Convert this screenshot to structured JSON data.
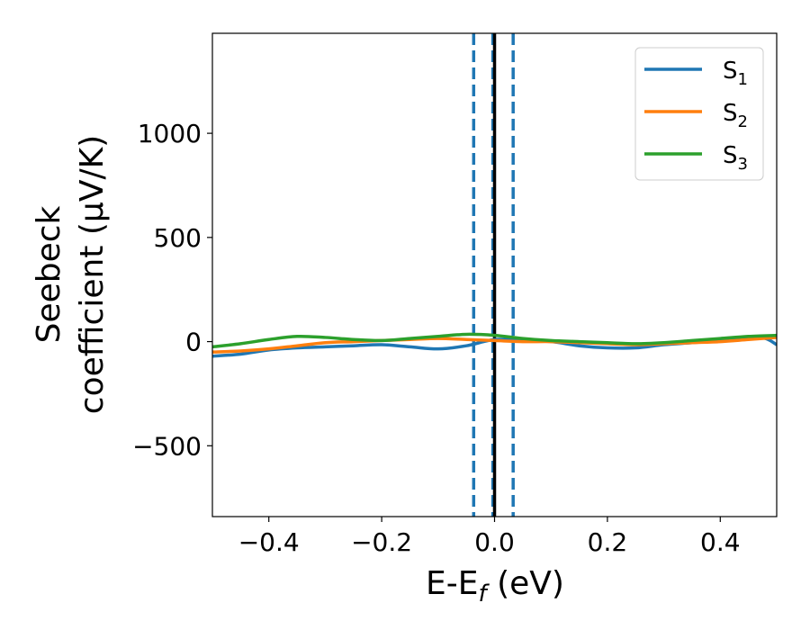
{
  "chart_data": {
    "type": "line",
    "xlabel": "E-E",
    "xlabel_sub": "f",
    "xlabel_unit": " (eV)",
    "ylabel_line1": "Seebeck",
    "ylabel_line2": "coefficient  (μV/K)",
    "xlim": [
      -0.5,
      0.5
    ],
    "ylim": [
      -840,
      1480
    ],
    "xticks": [
      -0.4,
      -0.2,
      0.0,
      0.2,
      0.4
    ],
    "xtick_labels": [
      "−0.4",
      "−0.2",
      "0.0",
      "0.2",
      "0.4"
    ],
    "yticks": [
      -500,
      0,
      500,
      1000
    ],
    "ytick_labels": [
      "−500",
      "0",
      "500",
      "1000"
    ],
    "grid": false,
    "legend_position": "top-right",
    "vlines": [
      {
        "x": -0.037,
        "style": "dashed",
        "color": "#1f77b4"
      },
      {
        "x": -0.003,
        "style": "dashed",
        "color": "#1f77b4"
      },
      {
        "x": 0.033,
        "style": "dashed",
        "color": "#1f77b4"
      },
      {
        "x": 0.0,
        "style": "solid",
        "color": "#000000"
      }
    ],
    "series": [
      {
        "name": "S",
        "sub": "1",
        "color": "#1f77b4",
        "x": [
          -0.5,
          -0.45,
          -0.4,
          -0.35,
          -0.3,
          -0.25,
          -0.2,
          -0.15,
          -0.1,
          -0.05,
          0.0,
          0.05,
          0.1,
          0.15,
          0.2,
          0.25,
          0.3,
          0.35,
          0.4,
          0.45,
          0.48,
          0.5
        ],
        "y": [
          -70,
          -60,
          -40,
          -30,
          -25,
          -20,
          -15,
          -25,
          -35,
          -20,
          10,
          5,
          0,
          -20,
          -30,
          -30,
          -15,
          -5,
          5,
          20,
          15,
          -15
        ]
      },
      {
        "name": "S",
        "sub": "2",
        "color": "#ff7f0e",
        "x": [
          -0.5,
          -0.45,
          -0.4,
          -0.35,
          -0.3,
          -0.25,
          -0.2,
          -0.15,
          -0.1,
          -0.05,
          0.0,
          0.05,
          0.1,
          0.15,
          0.2,
          0.25,
          0.3,
          0.35,
          0.4,
          0.45,
          0.5
        ],
        "y": [
          -50,
          -45,
          -35,
          -20,
          -5,
          0,
          5,
          10,
          15,
          10,
          5,
          0,
          0,
          -5,
          -10,
          -15,
          -10,
          -5,
          0,
          10,
          20
        ]
      },
      {
        "name": "S",
        "sub": "3",
        "color": "#2ca02c",
        "x": [
          -0.5,
          -0.45,
          -0.4,
          -0.35,
          -0.3,
          -0.25,
          -0.2,
          -0.15,
          -0.1,
          -0.05,
          0.0,
          0.05,
          0.1,
          0.15,
          0.2,
          0.25,
          0.3,
          0.35,
          0.4,
          0.45,
          0.5
        ],
        "y": [
          -25,
          -10,
          10,
          25,
          20,
          10,
          5,
          15,
          25,
          35,
          30,
          15,
          5,
          0,
          -5,
          -10,
          -5,
          5,
          15,
          25,
          30
        ]
      }
    ]
  }
}
